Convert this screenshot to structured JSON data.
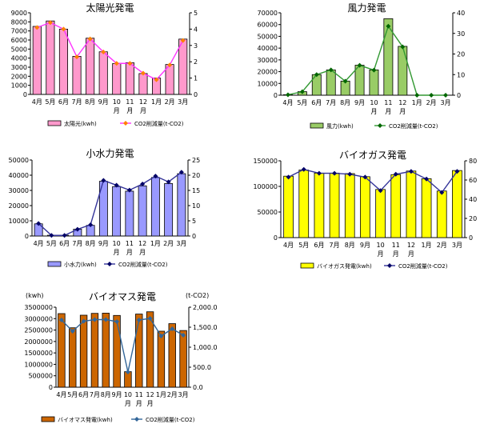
{
  "chart_data": [
    {
      "type": "bar",
      "title": "太陽光発電",
      "categories": [
        "4月",
        "5月",
        "6月",
        "7月",
        "8月",
        "9月",
        "10\n月",
        "11\n月",
        "12\n月",
        "1月",
        "2月",
        "3月"
      ],
      "y_left": {
        "min": 0,
        "max": 9000,
        "step": 1000
      },
      "y_right": {
        "min": 0,
        "max": 5,
        "step": 1
      },
      "series": [
        {
          "name": "太陽光(kwh)",
          "kind": "bar",
          "axis": "left",
          "color": "#ff99cc",
          "values": [
            7500,
            8100,
            7200,
            4200,
            6200,
            4700,
            3400,
            3500,
            2300,
            1800,
            3300,
            6100
          ]
        },
        {
          "name": "CO2削減量(t-CO2)",
          "kind": "line",
          "axis": "right",
          "color": "#ff33ff",
          "marker_color": "#ff8000",
          "values": [
            4.1,
            4.4,
            4.0,
            2.3,
            3.4,
            2.6,
            1.9,
            1.9,
            1.3,
            0.9,
            1.8,
            3.3
          ]
        }
      ]
    },
    {
      "type": "bar",
      "title": "風力発電",
      "categories": [
        "4月",
        "5月",
        "6月",
        "7月",
        "8月",
        "9月",
        "10\n月",
        "11\n月",
        "12\n月",
        "1月",
        "2月",
        "3月"
      ],
      "y_left": {
        "min": 0,
        "max": 70000,
        "step": 10000
      },
      "y_right": {
        "min": 0,
        "max": 40,
        "step": 10
      },
      "series": [
        {
          "name": "風力(kwh)",
          "kind": "bar",
          "axis": "left",
          "color": "#99cc66",
          "values": [
            400,
            3000,
            17500,
            21500,
            12000,
            25500,
            21500,
            65000,
            41500,
            0,
            0,
            0
          ]
        },
        {
          "name": "CO2削減量(t-CO2)",
          "kind": "line",
          "axis": "right",
          "color": "#339933",
          "marker_color": "#006600",
          "values": [
            0.2,
            1.7,
            10,
            12.3,
            6.8,
            14.5,
            12.2,
            33.5,
            23.5,
            0,
            0,
            0
          ]
        }
      ]
    },
    {
      "type": "bar",
      "title": "小水力発電",
      "categories": [
        "4月",
        "5月",
        "6月",
        "7月",
        "8月",
        "9月",
        "10\n月",
        "11\n月",
        "12\n月",
        "1月",
        "2月",
        "3月"
      ],
      "y_left": {
        "min": 0,
        "max": 50000,
        "step": 10000
      },
      "y_right": {
        "min": 0,
        "max": 25,
        "step": 5
      },
      "series": [
        {
          "name": "小水力(kwh)",
          "kind": "bar",
          "axis": "left",
          "color": "#9999ff",
          "values": [
            8000,
            500,
            500,
            4500,
            7000,
            36000,
            32500,
            29500,
            33000,
            38500,
            34500,
            41000
          ]
        },
        {
          "name": "CO2削減量(t-CO2)",
          "kind": "line",
          "axis": "right",
          "color": "#333399",
          "marker_color": "#000066",
          "values": [
            4.1,
            0.2,
            0.2,
            2.2,
            3.7,
            18.3,
            16.7,
            15.1,
            17.1,
            19.7,
            17.8,
            21.0
          ]
        }
      ]
    },
    {
      "type": "bar",
      "title": "バイオガス発電",
      "categories": [
        "4月",
        "5月",
        "6月",
        "7月",
        "8月",
        "9月",
        "10\n月",
        "11\n月",
        "12\n月",
        "1月",
        "2月",
        "3月"
      ],
      "y_left": {
        "min": 0,
        "max": 150000,
        "step": 50000
      },
      "y_right": {
        "min": 0,
        "max": 80,
        "step": 20
      },
      "series": [
        {
          "name": "バイオガス発電(kwh)",
          "kind": "bar",
          "axis": "left",
          "color": "#ffff00",
          "values": [
            120000,
            132000,
            126000,
            126000,
            125000,
            119000,
            94000,
            123000,
            130000,
            115000,
            91000,
            131000
          ]
        },
        {
          "name": "CO2削減量(t-CO2)",
          "kind": "line",
          "axis": "right",
          "color": "#333399",
          "marker_color": "#000066",
          "values": [
            63,
            71,
            67,
            67,
            66,
            63,
            49,
            66,
            69,
            61,
            47,
            69
          ]
        }
      ]
    },
    {
      "type": "bar",
      "title": "バイオマス発電",
      "unit_left": "(kwh)",
      "unit_right": "(t-CO2)",
      "categories": [
        "4月",
        "5月",
        "6月",
        "7月",
        "8月",
        "9月",
        "10\n月",
        "11\n月",
        "12\n月",
        "1月",
        "2月",
        "3月"
      ],
      "y_left": {
        "min": 0,
        "max": 3500000,
        "step": 500000
      },
      "y_right": {
        "min": 0,
        "max": 2000,
        "step": 500,
        "decimals": 1
      },
      "series": [
        {
          "name": "バイオマス発電(kwh)",
          "kind": "bar",
          "axis": "left",
          "color": "#cc6600",
          "values": [
            3220000,
            2600000,
            3150000,
            3230000,
            3240000,
            3140000,
            680000,
            3200000,
            3300000,
            2450000,
            2780000,
            2480000
          ]
        },
        {
          "name": "CO2削減量(t-CO2)",
          "kind": "line",
          "axis": "right",
          "color": "#336699",
          "marker_color": "#336699",
          "values": [
            1680,
            1400,
            1650,
            1690,
            1690,
            1640,
            380,
            1680,
            1720,
            1280,
            1460,
            1300
          ]
        }
      ]
    }
  ]
}
